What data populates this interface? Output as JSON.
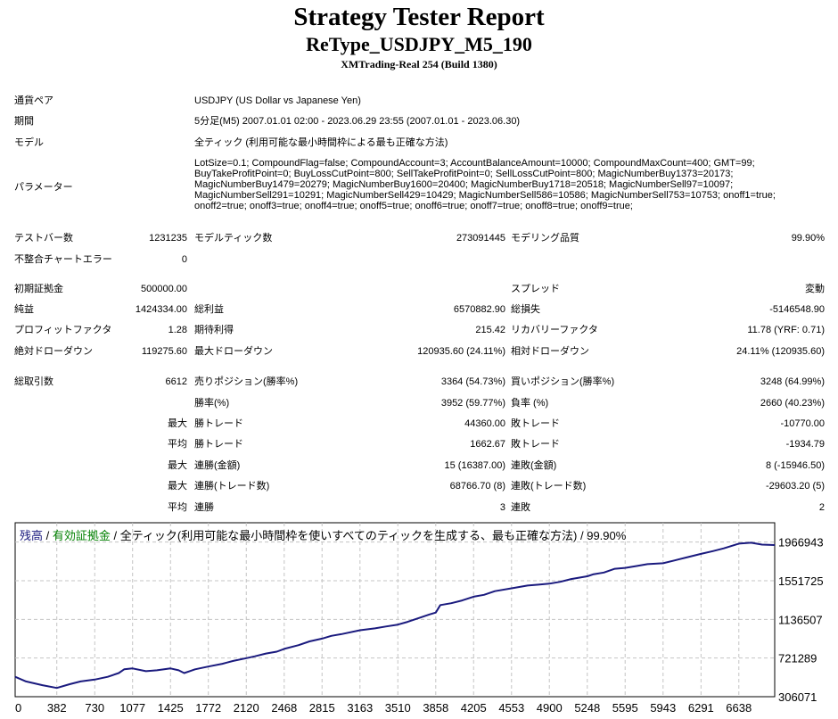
{
  "report": {
    "title": "Strategy Tester Report",
    "subtitle": "ReType_USDJPY_M5_190",
    "server": "XMTrading-Real 254 (Build 1380)"
  },
  "info": {
    "symbol_label": "通貨ペア",
    "symbol_value": "USDJPY (US Dollar vs Japanese Yen)",
    "period_label": "期間",
    "period_value": "5分足(M5) 2007.01.01 02:00 - 2023.06.29 23:55 (2007.01.01 - 2023.06.30)",
    "model_label": "モデル",
    "model_value": "全ティック (利用可能な最小時間枠による最も正確な方法)",
    "params_label": "パラメーター",
    "params_value": "LotSize=0.1; CompoundFlag=false; CompoundAccount=3; AccountBalanceAmount=10000; CompoundMaxCount=400; GMT=99; BuyTakeProfitPoint=0; BuyLossCutPoint=800; SellTakeProfitPoint=0; SellLossCutPoint=800; MagicNumberBuy1373=20173; MagicNumberBuy1479=20279; MagicNumberBuy1600=20400; MagicNumberBuy1718=20518; MagicNumberSell97=10097; MagicNumberSell291=10291; MagicNumberSell429=10429; MagicNumberSell586=10586; MagicNumberSell753=10753; onoff1=true; onoff2=true; onoff3=true; onoff4=true; onoff5=true; onoff6=true; onoff7=true; onoff8=true; onoff9=true;"
  },
  "stats": {
    "bars_label": "テストバー数",
    "bars_value": "1231235",
    "ticks_label": "モデルティック数",
    "ticks_value": "273091445",
    "quality_label": "モデリング品質",
    "quality_value": "99.90%",
    "mismatch_label": "不整合チャートエラー",
    "mismatch_value": "0",
    "deposit_label": "初期証拠金",
    "deposit_value": "500000.00",
    "spread_label": "スプレッド",
    "spread_value": "変動",
    "net_label": "純益",
    "net_value": "1424334.00",
    "gross_profit_label": "総利益",
    "gross_profit_value": "6570882.90",
    "gross_loss_label": "総損失",
    "gross_loss_value": "-5146548.90",
    "pf_label": "プロフィットファクタ",
    "pf_value": "1.28",
    "expected_label": "期待利得",
    "expected_value": "215.42",
    "recovery_label": "リカバリーファクタ",
    "recovery_value": "11.78 (YRF: 0.71)",
    "abs_dd_label": "絶対ドローダウン",
    "abs_dd_value": "119275.60",
    "max_dd_label": "最大ドローダウン",
    "max_dd_value": "120935.60 (24.11%)",
    "rel_dd_label": "相対ドローダウン",
    "rel_dd_value": "24.11% (120935.60)",
    "total_trades_label": "総取引数",
    "total_trades_value": "6612",
    "short_label": "売りポジション(勝率%)",
    "short_value": "3364 (54.73%)",
    "long_label": "買いポジション(勝率%)",
    "long_value": "3248 (64.99%)",
    "win_rate_label": "勝率(%)",
    "win_rate_value": "3952 (59.77%)",
    "loss_rate_label": "負率 (%)",
    "loss_rate_value": "2660 (40.23%)",
    "max_word": "最大",
    "avg_word": "平均",
    "largest_win_label": "勝トレード",
    "largest_win_value": "44360.00",
    "largest_loss_label": "敗トレード",
    "largest_loss_value": "-10770.00",
    "avg_win_label": "勝トレード",
    "avg_win_value": "1662.67",
    "avg_loss_label": "敗トレード",
    "avg_loss_value": "-1934.79",
    "max_cons_wins_label": "連勝(金額)",
    "max_cons_wins_value": "15 (16387.00)",
    "max_cons_losses_label": "連敗(金額)",
    "max_cons_losses_value": "8 (-15946.50)",
    "max_cons_profit_label": "連勝(トレード数)",
    "max_cons_profit_value": "68766.70 (8)",
    "max_cons_loss_label": "連敗(トレード数)",
    "max_cons_loss_value": "-29603.20 (5)",
    "avg_cons_wins_label": "連勝",
    "avg_cons_wins_value": "3",
    "avg_cons_losses_label": "連敗",
    "avg_cons_losses_value": "2"
  },
  "chart_legend": {
    "balance": "残高",
    "sep1": " / ",
    "equity": "有効証拠金",
    "sep2": " / 全ティック(利用可能な最小時間枠を使いすべてのティックを生成する、最も正確な方法) / 99.90%"
  },
  "colors": {
    "balance_color": "#1a1a7e",
    "equity_color": "#008000",
    "grid_color": "#c4c4c4"
  },
  "chart_data": {
    "type": "line",
    "title": "",
    "xlabel": "",
    "ylabel": "",
    "grid": true,
    "legend": "top-left",
    "xlim": [
      0,
      6967
    ],
    "ylim": [
      306071,
      2174547
    ],
    "x_ticks": [
      0,
      382,
      730,
      1077,
      1425,
      1772,
      2120,
      2468,
      2815,
      3163,
      3510,
      3858,
      4205,
      4553,
      4900,
      5248,
      5595,
      5943,
      6291,
      6638
    ],
    "y_ticks": [
      306071,
      721289,
      1136507,
      1551725,
      1966943
    ],
    "series": [
      {
        "name": "残高",
        "x": [
          0,
          100,
          250,
          382,
          500,
          600,
          730,
          850,
          950,
          1000,
          1077,
          1200,
          1300,
          1425,
          1500,
          1550,
          1600,
          1650,
          1772,
          1900,
          2000,
          2120,
          2200,
          2300,
          2400,
          2468,
          2600,
          2700,
          2815,
          2900,
          3000,
          3163,
          3300,
          3400,
          3510,
          3600,
          3700,
          3800,
          3858,
          3900,
          4000,
          4100,
          4205,
          4300,
          4400,
          4553,
          4700,
          4800,
          4900,
          5000,
          5100,
          5248,
          5300,
          5400,
          5500,
          5595,
          5700,
          5800,
          5943,
          6050,
          6150,
          6291,
          6400,
          6500,
          6638,
          6750,
          6850,
          6967
        ],
        "y": [
          520000,
          470000,
          430000,
          400000,
          440000,
          470000,
          490000,
          520000,
          560000,
          600000,
          610000,
          580000,
          590000,
          610000,
          590000,
          560000,
          580000,
          600000,
          630000,
          660000,
          690000,
          720000,
          740000,
          770000,
          790000,
          820000,
          860000,
          900000,
          930000,
          960000,
          980000,
          1020000,
          1040000,
          1060000,
          1080000,
          1110000,
          1150000,
          1190000,
          1210000,
          1290000,
          1310000,
          1340000,
          1380000,
          1400000,
          1440000,
          1470000,
          1500000,
          1510000,
          1520000,
          1540000,
          1570000,
          1600000,
          1620000,
          1640000,
          1680000,
          1690000,
          1710000,
          1730000,
          1740000,
          1770000,
          1800000,
          1840000,
          1870000,
          1900000,
          1950000,
          1960000,
          1940000,
          1935000
        ]
      }
    ]
  }
}
